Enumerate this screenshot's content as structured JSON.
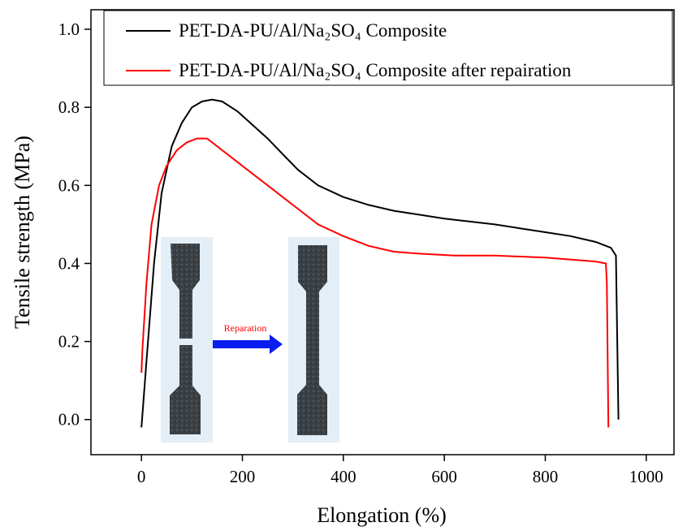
{
  "chart_data": {
    "type": "line",
    "xlabel": "Elongation (%)",
    "ylabel": "Tensile strength (MPa)",
    "annotation": "Reparation",
    "xlim": [
      -100,
      1055
    ],
    "ylim": [
      -0.09,
      1.05
    ],
    "xticks": [
      0,
      200,
      400,
      600,
      800,
      1000
    ],
    "yticks": [
      {
        "value": 0,
        "label": "0.0"
      },
      0.2,
      0.4,
      0.6,
      0.8,
      {
        "value": 1,
        "label": "1.0"
      }
    ],
    "legend": "top",
    "series": [
      {
        "name": "PET-DA-PU/Al/Na₂SO₄ Composite",
        "color": "#000000",
        "x": [
          0,
          10,
          25,
          40,
          60,
          80,
          100,
          120,
          140,
          160,
          190,
          220,
          250,
          280,
          310,
          350,
          400,
          450,
          500,
          600,
          700,
          750,
          800,
          850,
          900,
          930,
          940,
          945
        ],
        "values": [
          -0.02,
          0.15,
          0.4,
          0.58,
          0.7,
          0.76,
          0.8,
          0.815,
          0.82,
          0.815,
          0.79,
          0.755,
          0.72,
          0.68,
          0.64,
          0.6,
          0.57,
          0.55,
          0.535,
          0.515,
          0.5,
          0.49,
          0.48,
          0.47,
          0.455,
          0.44,
          0.42,
          0.0
        ]
      },
      {
        "name": "PET-DA-PU/Al/Na₂SO₄ Composite after repairation",
        "color": "#ff0000",
        "x": [
          0,
          2,
          10,
          20,
          35,
          50,
          70,
          90,
          110,
          130,
          150,
          180,
          220,
          250,
          300,
          350,
          400,
          450,
          500,
          550,
          620,
          680,
          700,
          800,
          900,
          920,
          922,
          925
        ],
        "values": [
          0.12,
          0.18,
          0.35,
          0.5,
          0.6,
          0.65,
          0.69,
          0.71,
          0.72,
          0.72,
          0.7,
          0.67,
          0.63,
          0.6,
          0.55,
          0.5,
          0.47,
          0.445,
          0.43,
          0.425,
          0.42,
          0.42,
          0.42,
          0.415,
          0.405,
          0.4,
          0.35,
          -0.02
        ]
      }
    ]
  }
}
